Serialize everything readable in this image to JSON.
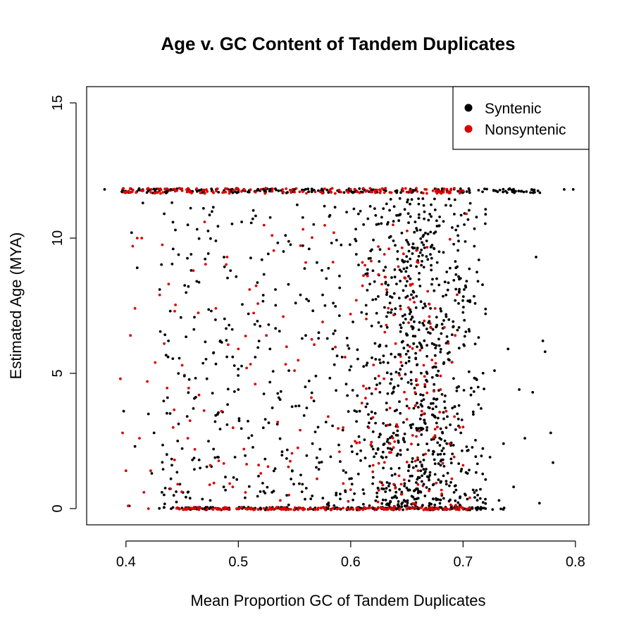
{
  "chart_data": {
    "type": "scatter",
    "title": "Age v. GC Content of Tandem Duplicates",
    "xlabel": "Mean Proportion GC of Tandem Duplicates",
    "ylabel": "Estimated Age (MYA)",
    "xlim": [
      0.365,
      0.812
    ],
    "ylim": [
      -0.6,
      15.6
    ],
    "x_ticks": [
      0.4,
      0.5,
      0.6,
      0.7,
      0.8
    ],
    "x_tick_labels": [
      "0.4",
      "0.5",
      "0.6",
      "0.7",
      "0.8"
    ],
    "y_ticks": [
      0,
      5,
      10,
      15
    ],
    "y_tick_labels": [
      "0",
      "5",
      "10",
      "15"
    ],
    "grid": false,
    "legend_position": "top-right",
    "series": [
      {
        "name": "Syntenic",
        "color": "#000000",
        "points": [
          [
            0.381,
            11.8
          ],
          [
            0.398,
            3.6
          ],
          [
            0.403,
            0.1
          ],
          [
            0.405,
            10.2
          ],
          [
            0.408,
            2.3
          ],
          [
            0.41,
            8.9
          ],
          [
            0.415,
            11.3
          ],
          [
            0.42,
            3.5
          ],
          [
            0.423,
            1.3
          ],
          [
            0.425,
            2.8
          ],
          [
            0.43,
            8.1
          ],
          [
            0.432,
            0.6
          ],
          [
            0.434,
            10.9
          ],
          [
            0.437,
            4.1
          ],
          [
            0.44,
            1.1
          ],
          [
            0.442,
            9.6
          ],
          [
            0.444,
            10.3
          ],
          [
            0.446,
            2.5
          ],
          [
            0.448,
            0.9
          ],
          [
            0.452,
            4.9
          ],
          [
            0.455,
            0.6
          ],
          [
            0.458,
            9.4
          ],
          [
            0.46,
            3.7
          ],
          [
            0.463,
            8.4
          ],
          [
            0.466,
            1.5
          ],
          [
            0.469,
            11.1
          ],
          [
            0.472,
            4.8
          ],
          [
            0.475,
            0.3
          ],
          [
            0.478,
            2.2
          ],
          [
            0.48,
            9.9
          ],
          [
            0.484,
            6.2
          ],
          [
            0.487,
            0.8
          ],
          [
            0.49,
            3.1
          ],
          [
            0.493,
            8.8
          ],
          [
            0.497,
            1.9
          ],
          [
            0.5,
            4.4
          ],
          [
            0.503,
            10.6
          ],
          [
            0.506,
            0.4
          ],
          [
            0.509,
            7.2
          ],
          [
            0.512,
            2.7
          ],
          [
            0.515,
            5.6
          ],
          [
            0.518,
            1.2
          ],
          [
            0.521,
            9.2
          ],
          [
            0.524,
            3.3
          ],
          [
            0.527,
            6.8
          ],
          [
            0.53,
            0.6
          ],
          [
            0.533,
            8.1
          ],
          [
            0.536,
            4.1
          ],
          [
            0.539,
            2.1
          ],
          [
            0.542,
            10.1
          ],
          [
            0.545,
            5.1
          ],
          [
            0.548,
            1.4
          ],
          [
            0.551,
            7.6
          ],
          [
            0.554,
            3.8
          ],
          [
            0.557,
            0.9
          ],
          [
            0.56,
            6.4
          ],
          [
            0.563,
            9.6
          ],
          [
            0.566,
            2.4
          ],
          [
            0.569,
            4.9
          ],
          [
            0.572,
            1.7
          ],
          [
            0.575,
            7.9
          ],
          [
            0.578,
            3.2
          ],
          [
            0.581,
            10.8
          ],
          [
            0.584,
            5.9
          ],
          [
            0.587,
            0.5
          ],
          [
            0.59,
            8.6
          ],
          [
            0.593,
            2.9
          ],
          [
            0.596,
            4.6
          ],
          [
            0.599,
            1.1
          ],
          [
            0.602,
            6.9
          ],
          [
            0.605,
            9.4
          ],
          [
            0.608,
            3.6
          ],
          [
            0.611,
            0.7
          ],
          [
            0.614,
            5.3
          ],
          [
            0.617,
            8.3
          ],
          [
            0.62,
            2.2
          ],
          [
            0.623,
            10.5
          ],
          [
            0.626,
            4.3
          ],
          [
            0.629,
            1.5
          ],
          [
            0.632,
            7.1
          ],
          [
            0.635,
            3.1
          ],
          [
            0.638,
            9.9
          ],
          [
            0.641,
            0.4
          ],
          [
            0.644,
            5.7
          ],
          [
            0.647,
            2.6
          ],
          [
            0.65,
            8.9
          ],
          [
            0.653,
            1.2
          ],
          [
            0.656,
            6.1
          ],
          [
            0.659,
            3.9
          ],
          [
            0.662,
            10.3
          ],
          [
            0.665,
            0.9
          ],
          [
            0.668,
            4.7
          ],
          [
            0.671,
            7.4
          ],
          [
            0.674,
            2.1
          ],
          [
            0.677,
            9.1
          ],
          [
            0.68,
            1.6
          ],
          [
            0.683,
            5.4
          ],
          [
            0.686,
            3.4
          ],
          [
            0.689,
            11.2
          ],
          [
            0.692,
            0.6
          ],
          [
            0.695,
            6.6
          ],
          [
            0.698,
            2.8
          ],
          [
            0.701,
            8.1
          ],
          [
            0.704,
            1.3
          ],
          [
            0.707,
            4.2
          ],
          [
            0.71,
            9.7
          ],
          [
            0.713,
            0.5
          ],
          [
            0.716,
            3.7
          ],
          [
            0.72,
            7.2
          ],
          [
            0.724,
            1.9
          ],
          [
            0.728,
            5.1
          ],
          [
            0.732,
            0.3
          ],
          [
            0.736,
            2.4
          ],
          [
            0.74,
            5.9
          ],
          [
            0.745,
            0.8
          ],
          [
            0.75,
            4.4
          ],
          [
            0.755,
            2.6
          ],
          [
            0.762,
            4.3
          ],
          [
            0.765,
            9.3
          ],
          [
            0.768,
            0.2
          ],
          [
            0.771,
            6.2
          ],
          [
            0.773,
            5.8
          ],
          [
            0.778,
            2.8
          ],
          [
            0.78,
            1.7
          ],
          [
            0.79,
            11.8
          ],
          [
            0.798,
            11.8
          ],
          [
            0.66,
            0.0
          ],
          [
            0.62,
            0.0
          ],
          [
            0.58,
            0.0
          ],
          [
            0.52,
            0.0
          ],
          [
            0.47,
            0.0
          ],
          [
            0.69,
            0.0
          ],
          [
            0.72,
            0.0
          ],
          [
            0.655,
            11.7
          ],
          [
            0.61,
            11.7
          ],
          [
            0.55,
            11.8
          ],
          [
            0.5,
            11.7
          ],
          [
            0.44,
            11.8
          ],
          [
            0.7,
            11.7
          ],
          [
            0.745,
            11.75
          ]
        ]
      },
      {
        "name": "Nonsyntenic",
        "color": "#dd0000",
        "points": [
          [
            0.395,
            4.8
          ],
          [
            0.397,
            2.8
          ],
          [
            0.4,
            1.4
          ],
          [
            0.402,
            0.1
          ],
          [
            0.404,
            6.4
          ],
          [
            0.406,
            9.7
          ],
          [
            0.408,
            7.4
          ],
          [
            0.41,
            10.0
          ],
          [
            0.412,
            2.6
          ],
          [
            0.414,
            10.0
          ],
          [
            0.416,
            0.6
          ],
          [
            0.419,
            4.7
          ],
          [
            0.422,
            1.4
          ],
          [
            0.426,
            5.4
          ],
          [
            0.43,
            7.9
          ],
          [
            0.434,
            6.1
          ],
          [
            0.438,
            8.3
          ],
          [
            0.442,
            3.0
          ],
          [
            0.446,
            0.9
          ],
          [
            0.45,
            5.3
          ],
          [
            0.455,
            2.6
          ],
          [
            0.46,
            8.8
          ],
          [
            0.465,
            4.2
          ],
          [
            0.47,
            10.6
          ],
          [
            0.475,
            1.6
          ],
          [
            0.48,
            7.4
          ],
          [
            0.485,
            3.6
          ],
          [
            0.49,
            9.3
          ],
          [
            0.495,
            0.8
          ],
          [
            0.5,
            5.9
          ],
          [
            0.505,
            2.2
          ],
          [
            0.51,
            8.1
          ],
          [
            0.515,
            4.6
          ],
          [
            0.52,
            1.3
          ],
          [
            0.525,
            6.4
          ],
          [
            0.53,
            10.1
          ],
          [
            0.535,
            3.2
          ],
          [
            0.54,
            7.1
          ],
          [
            0.545,
            0.5
          ],
          [
            0.55,
            5.1
          ],
          [
            0.555,
            2.9
          ],
          [
            0.56,
            9.1
          ],
          [
            0.565,
            4.1
          ],
          [
            0.57,
            1.1
          ],
          [
            0.575,
            6.9
          ],
          [
            0.58,
            3.4
          ],
          [
            0.585,
            10.2
          ],
          [
            0.59,
            2.1
          ],
          [
            0.595,
            5.6
          ],
          [
            0.6,
            0.7
          ],
          [
            0.605,
            7.7
          ],
          [
            0.61,
            3.9
          ],
          [
            0.615,
            8.6
          ],
          [
            0.62,
            1.6
          ],
          [
            0.625,
            4.9
          ],
          [
            0.63,
            9.4
          ],
          [
            0.635,
            2.4
          ],
          [
            0.64,
            6.1
          ],
          [
            0.645,
            0.9
          ],
          [
            0.65,
            3.3
          ],
          [
            0.655,
            8.3
          ],
          [
            0.66,
            1.4
          ],
          [
            0.665,
            5.3
          ],
          [
            0.67,
            7.1
          ],
          [
            0.675,
            2.7
          ],
          [
            0.68,
            4.4
          ],
          [
            0.685,
            3.6
          ],
          [
            0.688,
            2.4
          ],
          [
            0.69,
            1.1
          ],
          [
            0.693,
            6.4
          ],
          [
            0.697,
            3.0
          ],
          [
            0.7,
            1.6
          ],
          [
            0.703,
            10.9
          ],
          [
            0.706,
            0.4
          ],
          [
            0.42,
            0.0
          ],
          [
            0.46,
            0.0
          ],
          [
            0.5,
            0.0
          ],
          [
            0.54,
            0.0
          ],
          [
            0.59,
            0.0
          ],
          [
            0.63,
            0.0
          ],
          [
            0.67,
            0.0
          ],
          [
            0.7,
            0.0
          ],
          [
            0.4,
            11.7
          ],
          [
            0.45,
            11.75
          ],
          [
            0.5,
            11.8
          ],
          [
            0.55,
            11.7
          ],
          [
            0.6,
            11.8
          ],
          [
            0.65,
            11.7
          ],
          [
            0.7,
            11.75
          ]
        ]
      }
    ],
    "bands": [
      {
        "series": "Syntenic",
        "y": 11.75,
        "x_range": [
          0.395,
          0.77
        ],
        "count": 220,
        "spread": 0.08
      },
      {
        "series": "Nonsyntenic",
        "y": 11.75,
        "x_range": [
          0.395,
          0.7
        ],
        "count": 160,
        "spread": 0.1
      },
      {
        "series": "Syntenic",
        "y": 0.0,
        "x_range": [
          0.425,
          0.74
        ],
        "count": 160,
        "spread": 0.05
      },
      {
        "series": "Nonsyntenic",
        "y": 0.0,
        "x_range": [
          0.445,
          0.71
        ],
        "count": 180,
        "spread": 0.05
      }
    ],
    "cloud": [
      {
        "series": "Syntenic",
        "x_range": [
          0.43,
          0.72
        ],
        "y_range": [
          0,
          11.5
        ],
        "count": 1100,
        "peak_x": 0.66
      },
      {
        "series": "Nonsyntenic",
        "x_range": [
          0.43,
          0.7
        ],
        "y_range": [
          0,
          10.5
        ],
        "count": 190,
        "peak_x": 0.65
      }
    ]
  }
}
